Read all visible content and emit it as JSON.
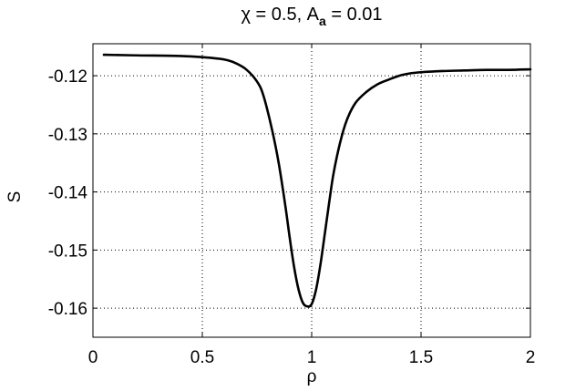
{
  "chart_data": {
    "type": "line",
    "title": {
      "prefix": "χ = 0.5, A",
      "subscript": "a",
      "suffix": " = 0.01"
    },
    "xlabel": "ρ",
    "ylabel": "S",
    "xlim": [
      0,
      2
    ],
    "ylim": [
      -0.165,
      -0.1145
    ],
    "grid": true,
    "x_ticks": [
      0,
      0.5,
      1,
      1.5,
      2
    ],
    "x_tick_labels": [
      "0",
      "0.5",
      "1",
      "1.5",
      "2"
    ],
    "y_ticks": [
      -0.12,
      -0.13,
      -0.14,
      -0.15,
      -0.16
    ],
    "y_tick_labels": [
      "-0.12",
      "-0.13",
      "-0.14",
      "-0.15",
      "-0.16"
    ],
    "series": [
      {
        "color": "#000000",
        "x": [
          0.05,
          0.2,
          0.4,
          0.5,
          0.6,
          0.65,
          0.7,
          0.75,
          0.78,
          0.82,
          0.85,
          0.88,
          0.9,
          0.92,
          0.94,
          0.96,
          0.98,
          1.0,
          1.02,
          1.04,
          1.06,
          1.08,
          1.1,
          1.13,
          1.16,
          1.2,
          1.25,
          1.3,
          1.35,
          1.4,
          1.45,
          1.5,
          1.6,
          1.7,
          1.8,
          1.9,
          2.0
        ],
        "y": [
          -0.1164,
          -0.1165,
          -0.1166,
          -0.1168,
          -0.1172,
          -0.1178,
          -0.1189,
          -0.121,
          -0.1235,
          -0.1295,
          -0.1352,
          -0.1425,
          -0.148,
          -0.153,
          -0.1568,
          -0.1591,
          -0.1597,
          -0.1593,
          -0.1568,
          -0.1525,
          -0.1472,
          -0.1418,
          -0.1368,
          -0.1315,
          -0.1277,
          -0.1247,
          -0.1228,
          -0.1215,
          -0.1207,
          -0.12,
          -0.1196,
          -0.1194,
          -0.1192,
          -0.1191,
          -0.119,
          -0.119,
          -0.1189
        ]
      }
    ]
  }
}
